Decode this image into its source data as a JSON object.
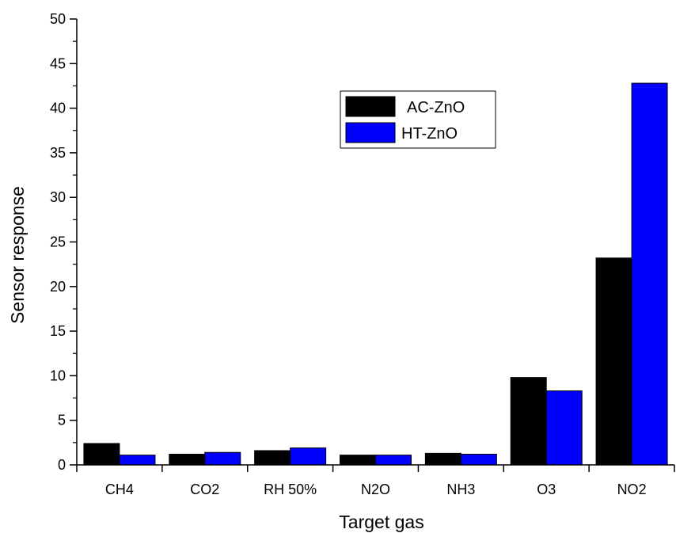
{
  "chart_data": {
    "type": "bar",
    "title": "",
    "xlabel": "Target gas",
    "ylabel": "Sensor response",
    "categories": [
      "CH4",
      "CO2",
      "RH 50%",
      "N2O",
      "NH3",
      "O3",
      "NO2"
    ],
    "series": [
      {
        "name": "AC-ZnO",
        "color": "#000000",
        "values": [
          2.4,
          1.2,
          1.6,
          1.1,
          1.3,
          9.8,
          23.2
        ]
      },
      {
        "name": "HT-ZnO",
        "color": "#0000ff",
        "values": [
          1.1,
          1.4,
          1.9,
          1.1,
          1.2,
          8.3,
          42.8
        ]
      }
    ],
    "ylim": [
      0,
      50
    ],
    "yticks": [
      0,
      5,
      10,
      15,
      20,
      25,
      30,
      35,
      40,
      45,
      50
    ],
    "grid": false,
    "legend_position": "upper-right"
  }
}
